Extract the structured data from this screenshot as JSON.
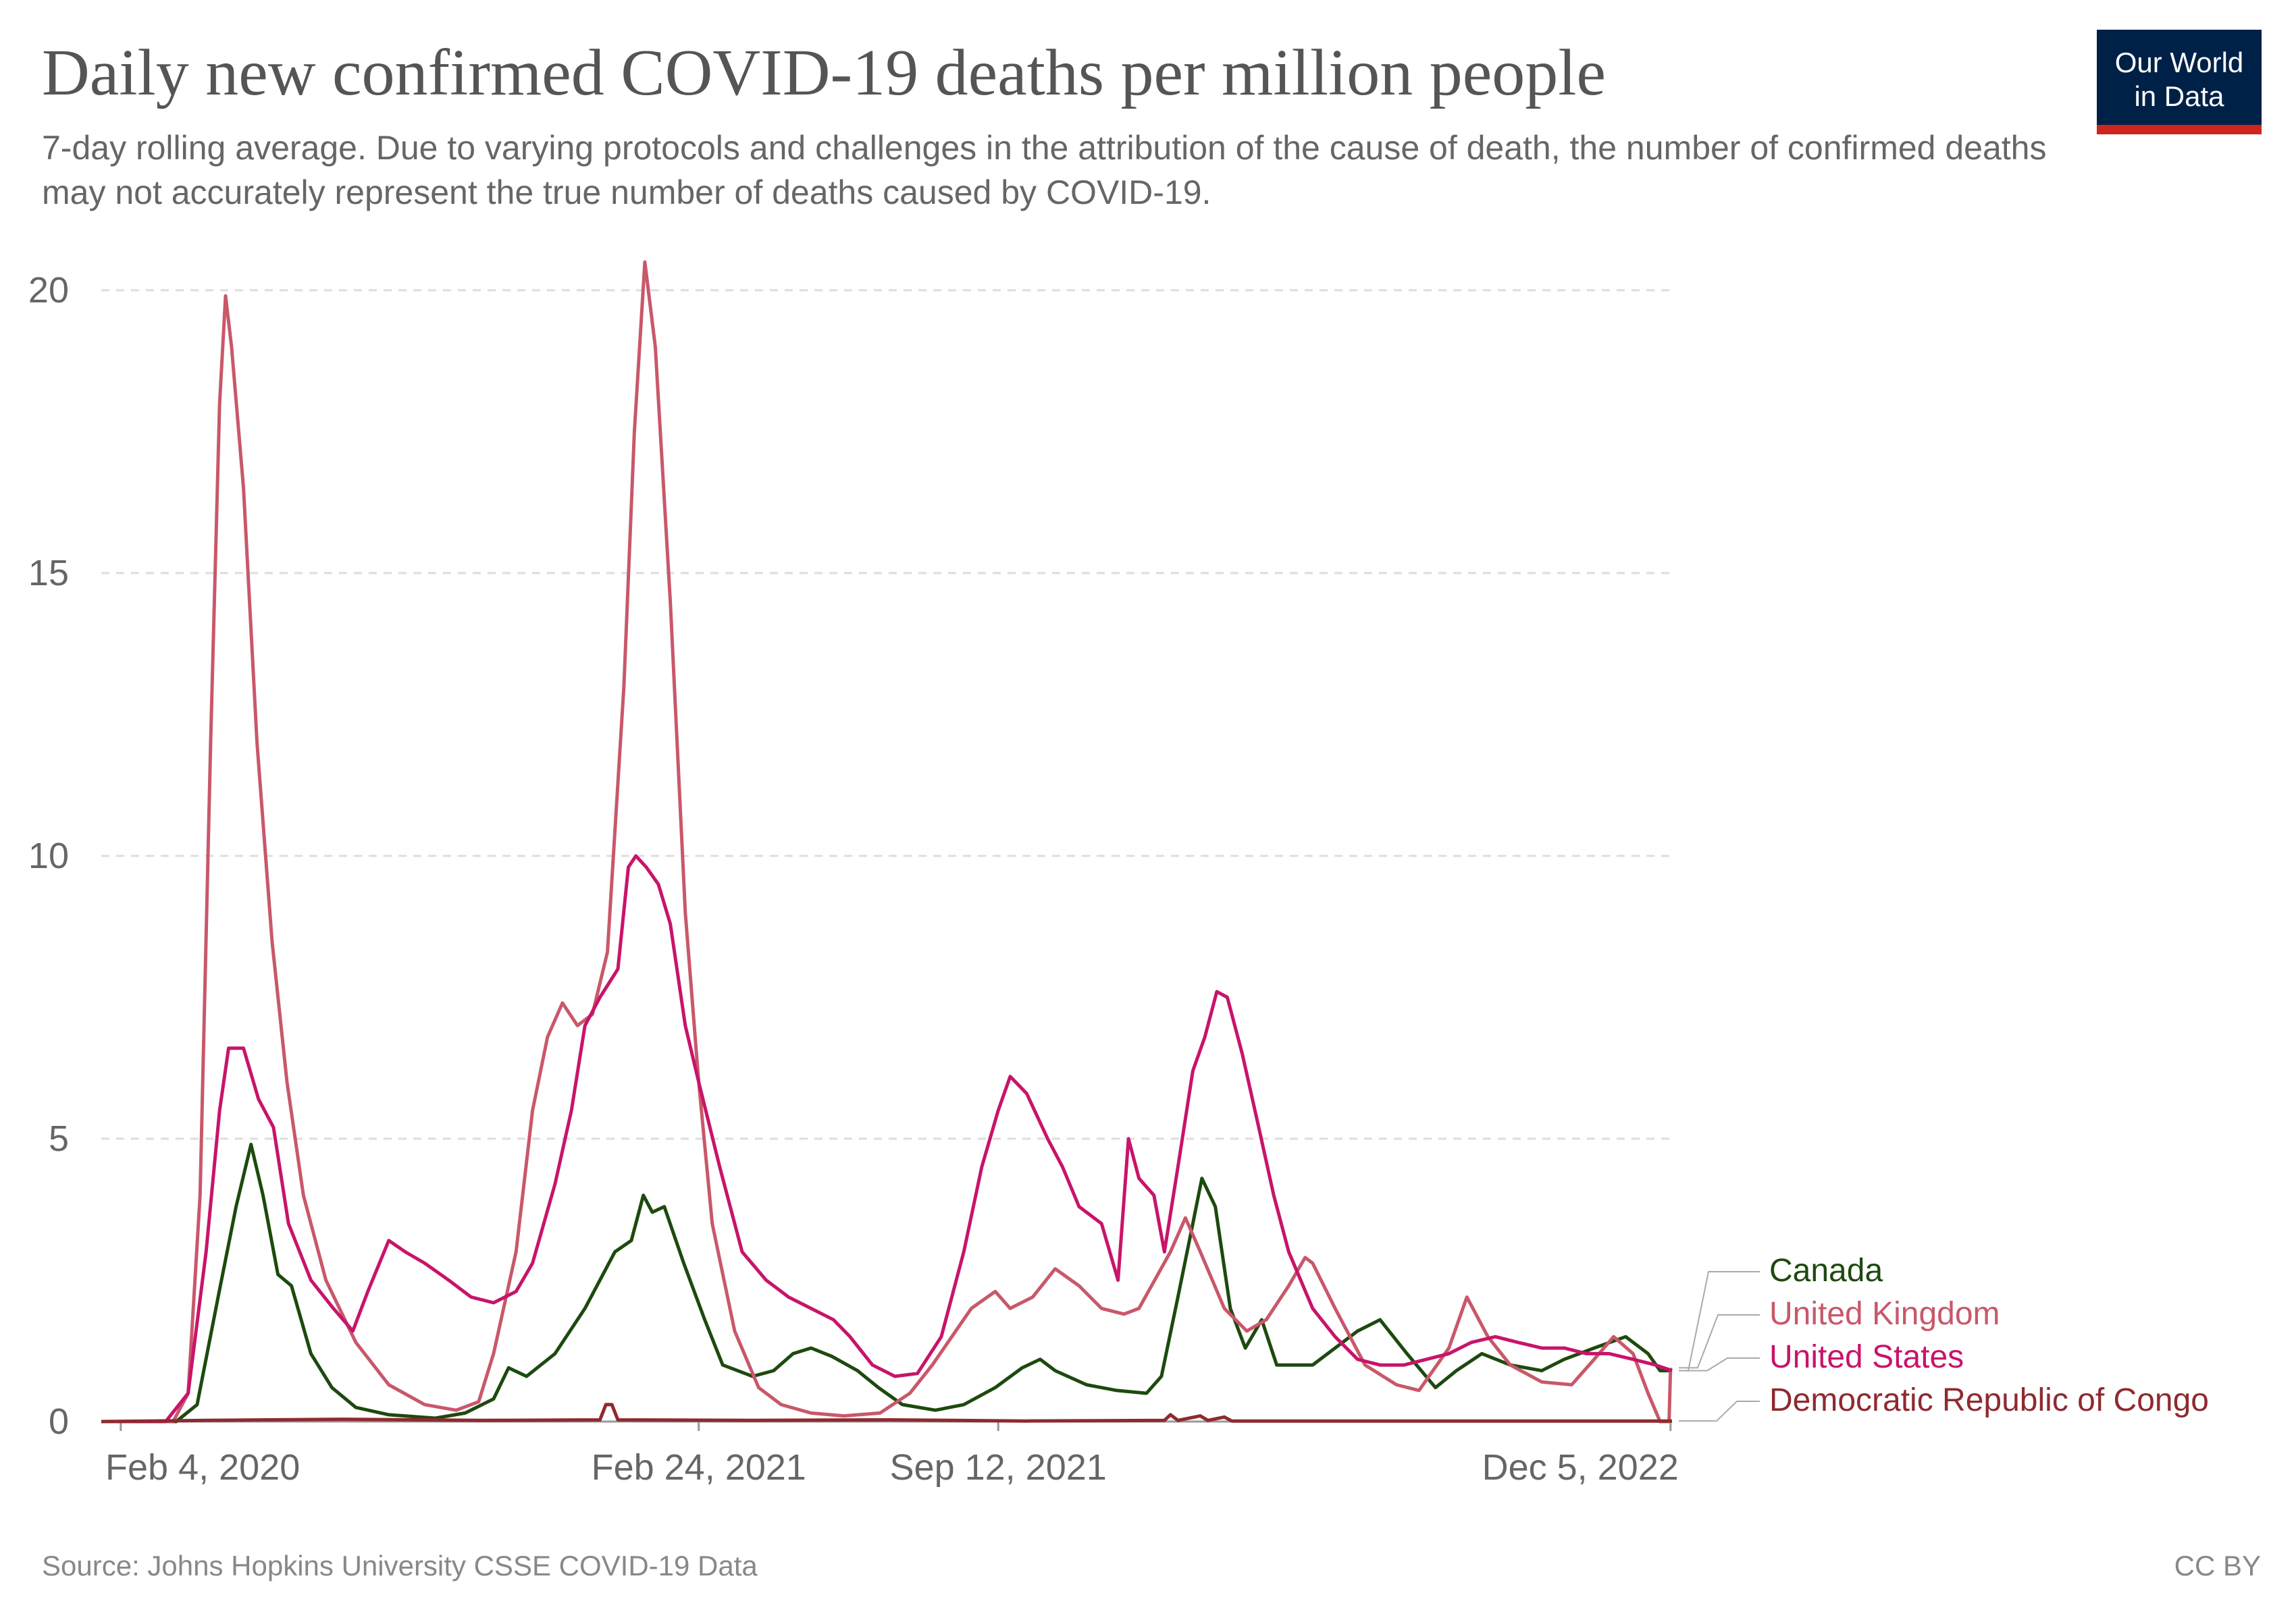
{
  "header": {
    "title": "Daily new confirmed COVID-19 deaths per million people",
    "subtitle": "7-day rolling average. Due to varying protocols and challenges in the attribution of the cause of death, the number of confirmed deaths may not accurately represent the true number of deaths caused by COVID-19.",
    "logo_line1": "Our World",
    "logo_line2": "in Data"
  },
  "footer": {
    "source": "Source: Johns Hopkins University CSSE COVID-19 Data",
    "license": "CC BY"
  },
  "colors": {
    "Canada": "#1d4a0f",
    "United Kingdom": "#c8586a",
    "United States": "#c8146a",
    "Democratic Republic of Congo": "#8e2a2f",
    "grid": "#dddddd",
    "logo_bg": "#002147",
    "logo_bar": "#ce261e"
  },
  "chart_data": {
    "type": "line",
    "x_range": [
      "2020-01-22",
      "2022-12-06"
    ],
    "ylim": [
      0,
      20
    ],
    "y_ticks": [
      0,
      5,
      10,
      15,
      20
    ],
    "x_ticks": [
      "Feb 4, 2020",
      "Feb 24, 2021",
      "Sep 12, 2021",
      "Dec 5, 2022"
    ],
    "x_tick_dates": [
      "2020-02-04",
      "2021-02-24",
      "2021-09-12",
      "2022-12-05"
    ],
    "grid": "horizontal dashed",
    "legend": "right, labels at line ends",
    "series": [
      {
        "name": "Canada",
        "points": [
          [
            "2020-01-22",
            0
          ],
          [
            "2020-03-12",
            0
          ],
          [
            "2020-03-26",
            0.3
          ],
          [
            "2020-04-09",
            2.2
          ],
          [
            "2020-04-21",
            3.8
          ],
          [
            "2020-05-01",
            4.9
          ],
          [
            "2020-05-09",
            4.0
          ],
          [
            "2020-05-19",
            2.6
          ],
          [
            "2020-05-28",
            2.4
          ],
          [
            "2020-06-10",
            1.2
          ],
          [
            "2020-06-24",
            0.6
          ],
          [
            "2020-07-10",
            0.25
          ],
          [
            "2020-08-01",
            0.12
          ],
          [
            "2020-09-01",
            0.06
          ],
          [
            "2020-09-21",
            0.15
          ],
          [
            "2020-10-10",
            0.4
          ],
          [
            "2020-10-20",
            0.95
          ],
          [
            "2020-11-01",
            0.8
          ],
          [
            "2020-11-20",
            1.2
          ],
          [
            "2020-12-10",
            2.0
          ],
          [
            "2020-12-30",
            3.0
          ],
          [
            "2021-01-10",
            3.2
          ],
          [
            "2021-01-18",
            4.0
          ],
          [
            "2021-01-24",
            3.7
          ],
          [
            "2021-02-01",
            3.8
          ],
          [
            "2021-02-14",
            2.8
          ],
          [
            "2021-02-28",
            1.8
          ],
          [
            "2021-03-12",
            1.0
          ],
          [
            "2021-04-01",
            0.8
          ],
          [
            "2021-04-15",
            0.9
          ],
          [
            "2021-04-28",
            1.2
          ],
          [
            "2021-05-10",
            1.3
          ],
          [
            "2021-05-24",
            1.15
          ],
          [
            "2021-06-10",
            0.9
          ],
          [
            "2021-06-24",
            0.6
          ],
          [
            "2021-07-10",
            0.3
          ],
          [
            "2021-08-01",
            0.2
          ],
          [
            "2021-08-20",
            0.3
          ],
          [
            "2021-09-10",
            0.6
          ],
          [
            "2021-09-28",
            0.95
          ],
          [
            "2021-10-10",
            1.1
          ],
          [
            "2021-10-20",
            0.9
          ],
          [
            "2021-11-10",
            0.65
          ],
          [
            "2021-11-30",
            0.55
          ],
          [
            "2021-12-20",
            0.5
          ],
          [
            "2021-12-30",
            0.8
          ],
          [
            "2022-01-10",
            2.2
          ],
          [
            "2022-01-20",
            3.5
          ],
          [
            "2022-01-26",
            4.3
          ],
          [
            "2022-02-04",
            3.8
          ],
          [
            "2022-02-14",
            2.0
          ],
          [
            "2022-02-24",
            1.3
          ],
          [
            "2022-03-07",
            1.8
          ],
          [
            "2022-03-17",
            1.0
          ],
          [
            "2022-04-10",
            1.0
          ],
          [
            "2022-05-10",
            1.6
          ],
          [
            "2022-05-25",
            1.8
          ],
          [
            "2022-06-12",
            1.2
          ],
          [
            "2022-07-01",
            0.6
          ],
          [
            "2022-07-15",
            0.9
          ],
          [
            "2022-08-01",
            1.2
          ],
          [
            "2022-08-20",
            1.0
          ],
          [
            "2022-09-10",
            0.9
          ],
          [
            "2022-09-25",
            1.1
          ],
          [
            "2022-10-15",
            1.3
          ],
          [
            "2022-11-05",
            1.5
          ],
          [
            "2022-11-20",
            1.2
          ],
          [
            "2022-11-28",
            0.9
          ],
          [
            "2022-12-06",
            0.9
          ]
        ]
      },
      {
        "name": "United Kingdom",
        "points": [
          [
            "2020-01-22",
            0
          ],
          [
            "2020-03-10",
            0
          ],
          [
            "2020-03-20",
            0.5
          ],
          [
            "2020-03-28",
            4.0
          ],
          [
            "2020-04-04",
            12.0
          ],
          [
            "2020-04-10",
            18.0
          ],
          [
            "2020-04-14",
            19.9
          ],
          [
            "2020-04-18",
            19.0
          ],
          [
            "2020-04-26",
            16.5
          ],
          [
            "2020-05-05",
            12.0
          ],
          [
            "2020-05-15",
            8.5
          ],
          [
            "2020-05-25",
            6.0
          ],
          [
            "2020-06-05",
            4.0
          ],
          [
            "2020-06-20",
            2.5
          ],
          [
            "2020-07-10",
            1.4
          ],
          [
            "2020-08-01",
            0.65
          ],
          [
            "2020-08-25",
            0.3
          ],
          [
            "2020-09-15",
            0.2
          ],
          [
            "2020-09-30",
            0.35
          ],
          [
            "2020-10-10",
            1.2
          ],
          [
            "2020-10-25",
            3.0
          ],
          [
            "2020-11-05",
            5.5
          ],
          [
            "2020-11-15",
            6.8
          ],
          [
            "2020-11-25",
            7.4
          ],
          [
            "2020-12-05",
            7.0
          ],
          [
            "2020-12-15",
            7.2
          ],
          [
            "2020-12-25",
            8.3
          ],
          [
            "2021-01-05",
            13.0
          ],
          [
            "2021-01-12",
            17.5
          ],
          [
            "2021-01-19",
            20.5
          ],
          [
            "2021-01-26",
            19.0
          ],
          [
            "2021-02-05",
            14.5
          ],
          [
            "2021-02-15",
            9.0
          ],
          [
            "2021-02-24",
            6.0
          ],
          [
            "2021-03-05",
            3.5
          ],
          [
            "2021-03-20",
            1.6
          ],
          [
            "2021-04-05",
            0.6
          ],
          [
            "2021-04-20",
            0.3
          ],
          [
            "2021-05-10",
            0.15
          ],
          [
            "2021-06-01",
            0.1
          ],
          [
            "2021-06-25",
            0.15
          ],
          [
            "2021-07-15",
            0.5
          ],
          [
            "2021-07-30",
            1.0
          ],
          [
            "2021-08-12",
            1.5
          ],
          [
            "2021-08-25",
            2.0
          ],
          [
            "2021-09-10",
            2.3
          ],
          [
            "2021-09-20",
            2.0
          ],
          [
            "2021-10-05",
            2.2
          ],
          [
            "2021-10-20",
            2.7
          ],
          [
            "2021-11-05",
            2.4
          ],
          [
            "2021-11-20",
            2.0
          ],
          [
            "2021-12-05",
            1.9
          ],
          [
            "2021-12-15",
            2.0
          ],
          [
            "2022-01-05",
            3.0
          ],
          [
            "2022-01-15",
            3.6
          ],
          [
            "2022-01-25",
            3.0
          ],
          [
            "2022-02-10",
            2.0
          ],
          [
            "2022-02-25",
            1.6
          ],
          [
            "2022-03-10",
            1.8
          ],
          [
            "2022-03-25",
            2.4
          ],
          [
            "2022-04-05",
            2.9
          ],
          [
            "2022-04-10",
            2.8
          ],
          [
            "2022-04-25",
            2.0
          ],
          [
            "2022-05-15",
            1.0
          ],
          [
            "2022-06-05",
            0.65
          ],
          [
            "2022-06-20",
            0.55
          ],
          [
            "2022-07-10",
            1.3
          ],
          [
            "2022-07-22",
            2.2
          ],
          [
            "2022-08-05",
            1.5
          ],
          [
            "2022-08-20",
            1.0
          ],
          [
            "2022-09-10",
            0.7
          ],
          [
            "2022-09-30",
            0.65
          ],
          [
            "2022-10-15",
            1.1
          ],
          [
            "2022-10-28",
            1.5
          ],
          [
            "2022-11-10",
            1.2
          ],
          [
            "2022-11-20",
            0.5
          ],
          [
            "2022-11-28",
            0.0
          ],
          [
            "2022-12-04",
            0.0
          ],
          [
            "2022-12-05",
            0.95
          ]
        ]
      },
      {
        "name": "United States",
        "points": [
          [
            "2020-01-22",
            0
          ],
          [
            "2020-03-05",
            0
          ],
          [
            "2020-03-20",
            0.5
          ],
          [
            "2020-04-01",
            3.0
          ],
          [
            "2020-04-10",
            5.5
          ],
          [
            "2020-04-16",
            6.6
          ],
          [
            "2020-04-26",
            6.6
          ],
          [
            "2020-05-06",
            5.7
          ],
          [
            "2020-05-16",
            5.2
          ],
          [
            "2020-05-26",
            3.5
          ],
          [
            "2020-06-10",
            2.5
          ],
          [
            "2020-06-25",
            2.0
          ],
          [
            "2020-07-08",
            1.6
          ],
          [
            "2020-07-18",
            2.3
          ],
          [
            "2020-08-01",
            3.2
          ],
          [
            "2020-08-12",
            3.0
          ],
          [
            "2020-08-25",
            2.8
          ],
          [
            "2020-09-10",
            2.5
          ],
          [
            "2020-09-25",
            2.2
          ],
          [
            "2020-10-10",
            2.1
          ],
          [
            "2020-10-25",
            2.3
          ],
          [
            "2020-11-05",
            2.8
          ],
          [
            "2020-11-20",
            4.2
          ],
          [
            "2020-12-01",
            5.5
          ],
          [
            "2020-12-10",
            7.0
          ],
          [
            "2020-12-20",
            7.5
          ],
          [
            "2021-01-01",
            8.0
          ],
          [
            "2021-01-08",
            9.8
          ],
          [
            "2021-01-13",
            10.0
          ],
          [
            "2021-01-20",
            9.8
          ],
          [
            "2021-01-28",
            9.5
          ],
          [
            "2021-02-05",
            8.8
          ],
          [
            "2021-02-15",
            7.0
          ],
          [
            "2021-02-24",
            6.0
          ],
          [
            "2021-03-10",
            4.5
          ],
          [
            "2021-03-25",
            3.0
          ],
          [
            "2021-04-10",
            2.5
          ],
          [
            "2021-04-25",
            2.2
          ],
          [
            "2021-05-10",
            2.0
          ],
          [
            "2021-05-25",
            1.8
          ],
          [
            "2021-06-05",
            1.5
          ],
          [
            "2021-06-20",
            1.0
          ],
          [
            "2021-07-05",
            0.8
          ],
          [
            "2021-07-20",
            0.85
          ],
          [
            "2021-08-05",
            1.5
          ],
          [
            "2021-08-20",
            3.0
          ],
          [
            "2021-09-01",
            4.5
          ],
          [
            "2021-09-12",
            5.5
          ],
          [
            "2021-09-20",
            6.1
          ],
          [
            "2021-10-01",
            5.8
          ],
          [
            "2021-10-15",
            5.0
          ],
          [
            "2021-10-25",
            4.5
          ],
          [
            "2021-11-05",
            3.8
          ],
          [
            "2021-11-20",
            3.5
          ],
          [
            "2021-12-01",
            2.5
          ],
          [
            "2021-12-08",
            5.0
          ],
          [
            "2021-12-15",
            4.3
          ],
          [
            "2021-12-25",
            4.0
          ],
          [
            "2022-01-01",
            3.0
          ],
          [
            "2022-01-10",
            4.5
          ],
          [
            "2022-01-20",
            6.2
          ],
          [
            "2022-01-28",
            6.8
          ],
          [
            "2022-02-05",
            7.6
          ],
          [
            "2022-02-12",
            7.5
          ],
          [
            "2022-02-22",
            6.5
          ],
          [
            "2022-03-05",
            5.2
          ],
          [
            "2022-03-15",
            4.0
          ],
          [
            "2022-03-25",
            3.0
          ],
          [
            "2022-04-10",
            2.0
          ],
          [
            "2022-04-25",
            1.5
          ],
          [
            "2022-05-10",
            1.1
          ],
          [
            "2022-05-25",
            1.0
          ],
          [
            "2022-06-10",
            1.0
          ],
          [
            "2022-06-25",
            1.1
          ],
          [
            "2022-07-10",
            1.2
          ],
          [
            "2022-07-25",
            1.4
          ],
          [
            "2022-08-10",
            1.5
          ],
          [
            "2022-08-25",
            1.4
          ],
          [
            "2022-09-10",
            1.3
          ],
          [
            "2022-09-25",
            1.3
          ],
          [
            "2022-10-10",
            1.2
          ],
          [
            "2022-10-25",
            1.2
          ],
          [
            "2022-11-10",
            1.1
          ],
          [
            "2022-11-25",
            1.0
          ],
          [
            "2022-12-06",
            0.9
          ]
        ]
      },
      {
        "name": "Democratic Republic of Congo",
        "points": [
          [
            "2020-01-22",
            0
          ],
          [
            "2020-04-01",
            0.02
          ],
          [
            "2020-07-01",
            0.04
          ],
          [
            "2020-10-01",
            0.02
          ],
          [
            "2020-12-20",
            0.03
          ],
          [
            "2020-12-24",
            0.3
          ],
          [
            "2020-12-28",
            0.3
          ],
          [
            "2021-01-01",
            0.03
          ],
          [
            "2021-04-01",
            0.02
          ],
          [
            "2021-07-01",
            0.03
          ],
          [
            "2021-10-01",
            0.01
          ],
          [
            "2022-01-01",
            0.02
          ],
          [
            "2022-01-05",
            0.12
          ],
          [
            "2022-01-10",
            0.02
          ],
          [
            "2022-01-25",
            0.1
          ],
          [
            "2022-01-30",
            0.02
          ],
          [
            "2022-02-10",
            0.08
          ],
          [
            "2022-02-15",
            0.01
          ],
          [
            "2022-06-01",
            0.01
          ],
          [
            "2022-09-01",
            0.01
          ],
          [
            "2022-12-06",
            0.01
          ]
        ]
      }
    ]
  },
  "legend": {
    "items": [
      "Canada",
      "United Kingdom",
      "United States",
      "Democratic Republic of Congo"
    ]
  }
}
